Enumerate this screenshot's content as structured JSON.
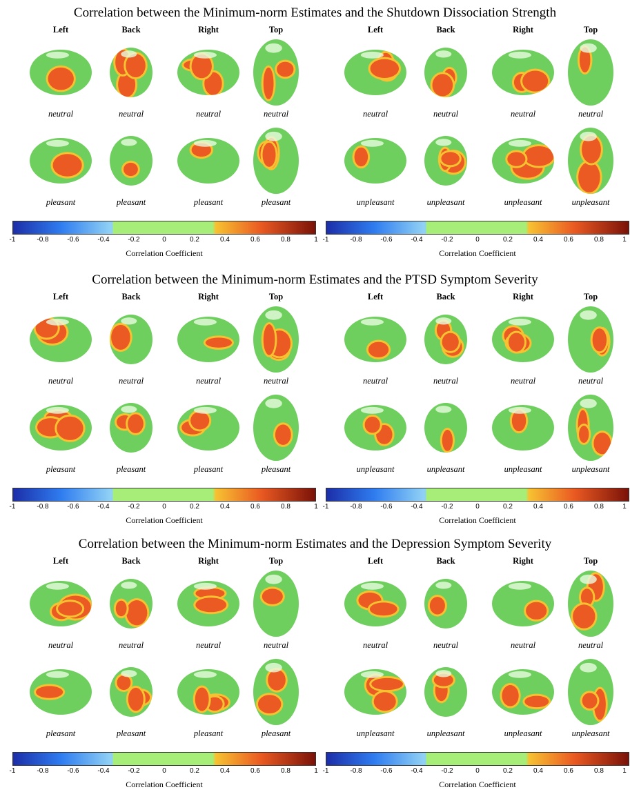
{
  "sections": [
    {
      "title": "Correlation between the Minimum-norm Estimates and the Shutdown Dissociation Strength",
      "panels": [
        {
          "views": [
            "Left",
            "Back",
            "Right",
            "Top"
          ],
          "rows": [
            "neutral",
            "pleasant"
          ]
        },
        {
          "views": [
            "Left",
            "Back",
            "Right",
            "Top"
          ],
          "rows": [
            "neutral",
            "unpleasant"
          ]
        }
      ]
    },
    {
      "title": "Correlation between the Minimum-norm Estimates and the PTSD Symptom Severity",
      "panels": [
        {
          "views": [
            "Left",
            "Back",
            "Right",
            "Top"
          ],
          "rows": [
            "neutral",
            "pleasant"
          ]
        },
        {
          "views": [
            "Left",
            "Back",
            "Right",
            "Top"
          ],
          "rows": [
            "neutral",
            "unpleasant"
          ]
        }
      ]
    },
    {
      "title": "Correlation between the Minimum-norm Estimates and the Depression Symptom Severity",
      "panels": [
        {
          "views": [
            "Left",
            "Back",
            "Right",
            "Top"
          ],
          "rows": [
            "neutral",
            "pleasant"
          ]
        },
        {
          "views": [
            "Left",
            "Back",
            "Right",
            "Top"
          ],
          "rows": [
            "neutral",
            "unpleasant"
          ]
        }
      ]
    }
  ],
  "colorbar": {
    "label": "Correlation Coefficient",
    "ticks": [
      "-1",
      "-0.8",
      "-0.6",
      "-0.4",
      "-0.2",
      "0",
      "0.2",
      "0.4",
      "0.6",
      "0.8",
      "1"
    ],
    "colors": {
      "neg_dark": "#1c2ea8",
      "neg_mid": "#2f7df0",
      "neg_light": "#8fd0f5",
      "neutral": "#a6ee78",
      "pos_light": "#f6c232",
      "pos_mid": "#ea5a22",
      "pos_dark": "#7a1208",
      "brain_base": "#6fcf5e"
    }
  }
}
